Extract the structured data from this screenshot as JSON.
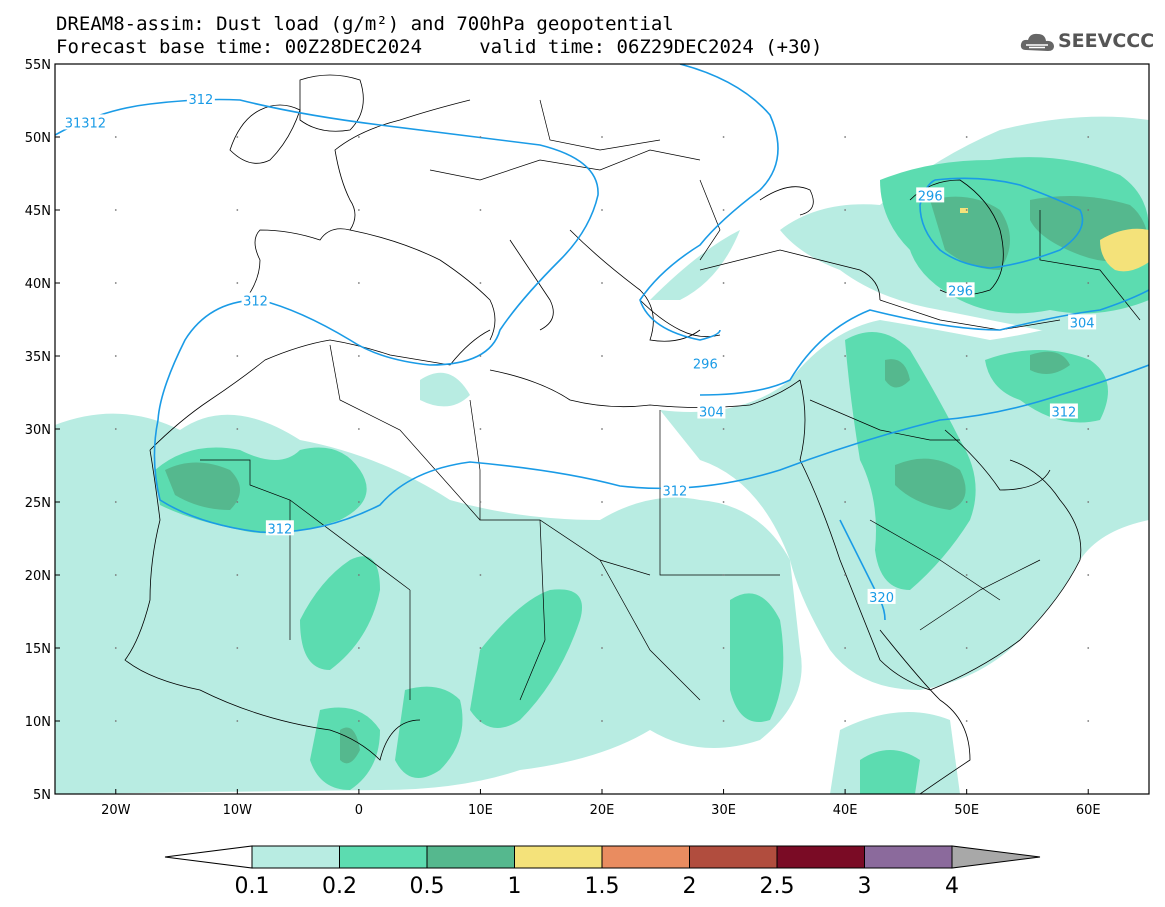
{
  "header": {
    "title_line1": "DREAM8-assim: Dust load (g/m²) and 700hPa geopotential",
    "title_line2": "Forecast base time: 00Z28DEC2024     valid time: 06Z29DEC2024 (+30)",
    "logo_text": "SEEVCCC"
  },
  "map": {
    "lat_labels": [
      "55N",
      "50N",
      "45N",
      "40N",
      "35N",
      "30N",
      "25N",
      "20N",
      "15N",
      "10N",
      "5N"
    ],
    "lat_values": [
      55,
      50,
      45,
      40,
      35,
      30,
      25,
      20,
      15,
      10,
      5
    ],
    "lon_labels": [
      "20W",
      "10W",
      "0",
      "10E",
      "20E",
      "30E",
      "40E",
      "50E",
      "60E"
    ],
    "lon_values": [
      -20,
      -10,
      0,
      10,
      20,
      30,
      40,
      50,
      60
    ],
    "extent": {
      "lon_min": -25,
      "lon_max": 65,
      "lat_min": 5,
      "lat_max": 55
    },
    "contour_color": "#1a9be6",
    "contour_labels": [
      {
        "text": "31312",
        "lon": -22.5,
        "lat": 51.0
      },
      {
        "text": "312",
        "lon": -13.0,
        "lat": 52.6
      },
      {
        "text": "312",
        "lon": -8.5,
        "lat": 38.8
      },
      {
        "text": "312",
        "lon": -6.5,
        "lat": 23.2
      },
      {
        "text": "312",
        "lon": 26.0,
        "lat": 25.8
      },
      {
        "text": "312",
        "lon": 58.0,
        "lat": 31.2
      },
      {
        "text": "296",
        "lon": 47.0,
        "lat": 46.0
      },
      {
        "text": "296",
        "lon": 49.5,
        "lat": 39.5
      },
      {
        "text": "296",
        "lon": 28.5,
        "lat": 34.5
      },
      {
        "text": "304",
        "lon": 29.0,
        "lat": 31.2
      },
      {
        "text": "304",
        "lon": 59.5,
        "lat": 37.3
      },
      {
        "text": "320",
        "lon": 43.0,
        "lat": 18.5
      }
    ]
  },
  "colorbar": {
    "labels": [
      "0.1",
      "0.2",
      "0.5",
      "1",
      "1.5",
      "2",
      "2.5",
      "3",
      "4"
    ],
    "colors": [
      "#b8ece2",
      "#5cdcb0",
      "#55b88e",
      "#f4e27a",
      "#e98c60",
      "#b14d3e",
      "#7a0b25",
      "#8b6a9c"
    ],
    "below_color": "#ffffff",
    "above_color": "#a8a8a8"
  }
}
